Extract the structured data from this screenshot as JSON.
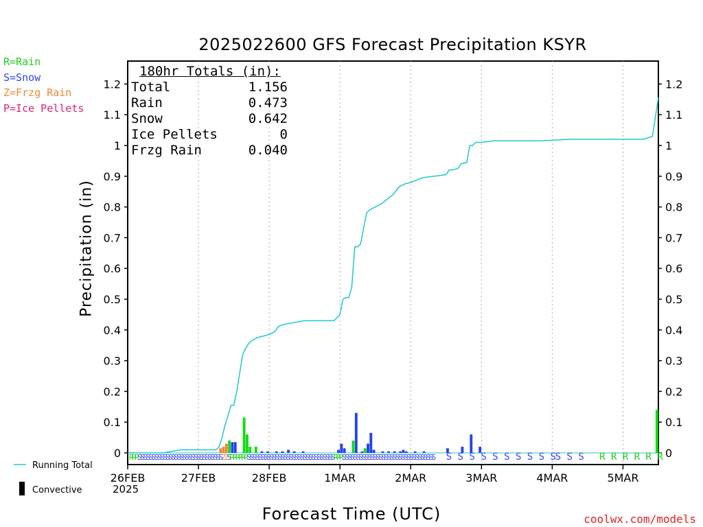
{
  "chart_data": {
    "type": "bar",
    "title": "2025022600 GFS Forecast Precipitation KSYR",
    "xlabel": "Forecast Time (UTC)",
    "ylabel": "Precipitation (in)",
    "ylim": [
      0,
      1.25
    ],
    "yticks": [
      "0",
      "0.1",
      "0.2",
      "0.3",
      "0.4",
      "0.5",
      "0.6",
      "0.7",
      "0.8",
      "0.9",
      "1",
      "1.1",
      "1.2"
    ],
    "xticks": [
      "26FEB",
      "27FEB",
      "28FEB",
      "1MAR",
      "2MAR",
      "3MAR",
      "4MAR",
      "5MAR"
    ],
    "year_label": "2025",
    "grid": "vertical dotted",
    "totals_box": {
      "heading": "180hr Totals (in):",
      "rows": [
        {
          "label": "Total",
          "value": "1.156"
        },
        {
          "label": "Rain",
          "value": "0.473"
        },
        {
          "label": "Snow",
          "value": "0.642"
        },
        {
          "label": "Ice Pellets",
          "value": "0"
        },
        {
          "label": "Frzg Rain",
          "value": "0.040"
        }
      ]
    },
    "type_legend": [
      {
        "text": "R=Rain",
        "color": "#22cc22"
      },
      {
        "text": "S=Snow",
        "color": "#3344ee"
      },
      {
        "text": "Z=Frzg Rain",
        "color": "#ee8833"
      },
      {
        "text": "P=Ice Pellets",
        "color": "#dd2277"
      }
    ],
    "series_legend": [
      {
        "name": "Running Total",
        "color": "#1fc8c8"
      },
      {
        "name": "Convective",
        "color": "#000000"
      }
    ],
    "credit": "coolwx.com/models",
    "colors": {
      "rain": "#11dd11",
      "snow": "#2244ee",
      "frzg": "#ee8833",
      "running": "#1fc8c8",
      "axis": "#000000",
      "grid": "#aaaaaa"
    },
    "running_total": [
      [
        0,
        0
      ],
      [
        3,
        0
      ],
      [
        6,
        0
      ],
      [
        9,
        0
      ],
      [
        12,
        0
      ],
      [
        15,
        0.005
      ],
      [
        18,
        0.01
      ],
      [
        21,
        0.01
      ],
      [
        24,
        0.01
      ],
      [
        27,
        0.01
      ],
      [
        30,
        0.01
      ],
      [
        31,
        0.02
      ],
      [
        32,
        0.05
      ],
      [
        33,
        0.09
      ],
      [
        34,
        0.12
      ],
      [
        35,
        0.155
      ],
      [
        36,
        0.155
      ],
      [
        37,
        0.2
      ],
      [
        38,
        0.26
      ],
      [
        39,
        0.32
      ],
      [
        40,
        0.34
      ],
      [
        41,
        0.355
      ],
      [
        42,
        0.365
      ],
      [
        44,
        0.375
      ],
      [
        46,
        0.38
      ],
      [
        48,
        0.385
      ],
      [
        50,
        0.395
      ],
      [
        51,
        0.41
      ],
      [
        52,
        0.415
      ],
      [
        54,
        0.42
      ],
      [
        57,
        0.425
      ],
      [
        60,
        0.43
      ],
      [
        66,
        0.43
      ],
      [
        70,
        0.43
      ],
      [
        71,
        0.44
      ],
      [
        72,
        0.45
      ],
      [
        73,
        0.5
      ],
      [
        74,
        0.505
      ],
      [
        75,
        0.505
      ],
      [
        76,
        0.54
      ],
      [
        77,
        0.67
      ],
      [
        78,
        0.67
      ],
      [
        79,
        0.68
      ],
      [
        80,
        0.73
      ],
      [
        81,
        0.78
      ],
      [
        82,
        0.79
      ],
      [
        84,
        0.8
      ],
      [
        86,
        0.81
      ],
      [
        88,
        0.825
      ],
      [
        90,
        0.84
      ],
      [
        92,
        0.865
      ],
      [
        94,
        0.875
      ],
      [
        96,
        0.88
      ],
      [
        100,
        0.895
      ],
      [
        104,
        0.9
      ],
      [
        108,
        0.905
      ],
      [
        109,
        0.92
      ],
      [
        110,
        0.92
      ],
      [
        112,
        0.925
      ],
      [
        113,
        0.94
      ],
      [
        115,
        0.945
      ],
      [
        116,
        1.0
      ],
      [
        117,
        1.0
      ],
      [
        118,
        1.01
      ],
      [
        120,
        1.01
      ],
      [
        124,
        1.015
      ],
      [
        130,
        1.015
      ],
      [
        140,
        1.015
      ],
      [
        150,
        1.02
      ],
      [
        162,
        1.02
      ],
      [
        168,
        1.02
      ],
      [
        175,
        1.02
      ],
      [
        178,
        1.03
      ],
      [
        180,
        1.156
      ]
    ],
    "bars": [
      {
        "x": 0.5,
        "v": 0.002,
        "t": "R"
      },
      {
        "x": 1.5,
        "v": 0.002,
        "t": "R"
      },
      {
        "x": 31.5,
        "v": 0.015,
        "t": "Z"
      },
      {
        "x": 32.5,
        "v": 0.02,
        "t": "Z"
      },
      {
        "x": 33.5,
        "v": 0.03,
        "t": "Z"
      },
      {
        "x": 34.5,
        "v": 0.04,
        "t": "R"
      },
      {
        "x": 35.5,
        "v": 0.035,
        "t": "S"
      },
      {
        "x": 36.5,
        "v": 0.035,
        "t": "S"
      },
      {
        "x": 39.5,
        "v": 0.115,
        "t": "R"
      },
      {
        "x": 40.5,
        "v": 0.06,
        "t": "R"
      },
      {
        "x": 41.5,
        "v": 0.02,
        "t": "R"
      },
      {
        "x": 43.5,
        "v": 0.02,
        "t": "R"
      },
      {
        "x": 45.5,
        "v": 0.005,
        "t": "S"
      },
      {
        "x": 47.5,
        "v": 0.005,
        "t": "S"
      },
      {
        "x": 50.5,
        "v": 0.005,
        "t": "S"
      },
      {
        "x": 52.5,
        "v": 0.005,
        "t": "S"
      },
      {
        "x": 54.5,
        "v": 0.01,
        "t": "S"
      },
      {
        "x": 56.5,
        "v": 0.005,
        "t": "S"
      },
      {
        "x": 59.5,
        "v": 0.005,
        "t": "S"
      },
      {
        "x": 71.5,
        "v": 0.01,
        "t": "S"
      },
      {
        "x": 72.5,
        "v": 0.03,
        "t": "S"
      },
      {
        "x": 73.5,
        "v": 0.015,
        "t": "S"
      },
      {
        "x": 76.5,
        "v": 0.04,
        "t": "R"
      },
      {
        "x": 77.5,
        "v": 0.13,
        "t": "S"
      },
      {
        "x": 79.5,
        "v": 0.005,
        "t": "S"
      },
      {
        "x": 80.5,
        "v": 0.015,
        "t": "R"
      },
      {
        "x": 81.5,
        "v": 0.03,
        "t": "S"
      },
      {
        "x": 82.5,
        "v": 0.065,
        "t": "S"
      },
      {
        "x": 83.5,
        "v": 0.01,
        "t": "S"
      },
      {
        "x": 86.5,
        "v": 0.005,
        "t": "S"
      },
      {
        "x": 88.5,
        "v": 0.005,
        "t": "S"
      },
      {
        "x": 90.5,
        "v": 0.005,
        "t": "S"
      },
      {
        "x": 92.5,
        "v": 0.005,
        "t": "S"
      },
      {
        "x": 93.5,
        "v": 0.01,
        "t": "S"
      },
      {
        "x": 94.5,
        "v": 0.005,
        "t": "S"
      },
      {
        "x": 97.5,
        "v": 0.005,
        "t": "S"
      },
      {
        "x": 100.5,
        "v": 0.005,
        "t": "S"
      },
      {
        "x": 108.5,
        "v": 0.015,
        "t": "S"
      },
      {
        "x": 113.5,
        "v": 0.02,
        "t": "S"
      },
      {
        "x": 116.5,
        "v": 0.06,
        "t": "S"
      },
      {
        "x": 119.5,
        "v": 0.02,
        "t": "S"
      },
      {
        "x": 179.5,
        "v": 0.14,
        "t": "R"
      }
    ],
    "type_letters_row1": "RRRSSSSSSSSSSSSSSSSSSSSSSSSSSSSSSZZSRRRRRRSSSSSSSSSSSSSSSSSSSSSSSSSSSSSSSRRRSSSSSSSSSSSSSSSSSSSSSSSSSSSSSSSSS",
    "type_letters_row2": [
      {
        "text": "S S S S S S S S S S",
        "color": "#3344ee",
        "h0": 108,
        "h1": 138
      },
      {
        "text": "S S S",
        "color": "#3344ee",
        "h0": 145,
        "h1": 153
      },
      {
        "text": "R R R R R R",
        "color": "#22cc22",
        "h0": 160,
        "h1": 180
      }
    ]
  }
}
